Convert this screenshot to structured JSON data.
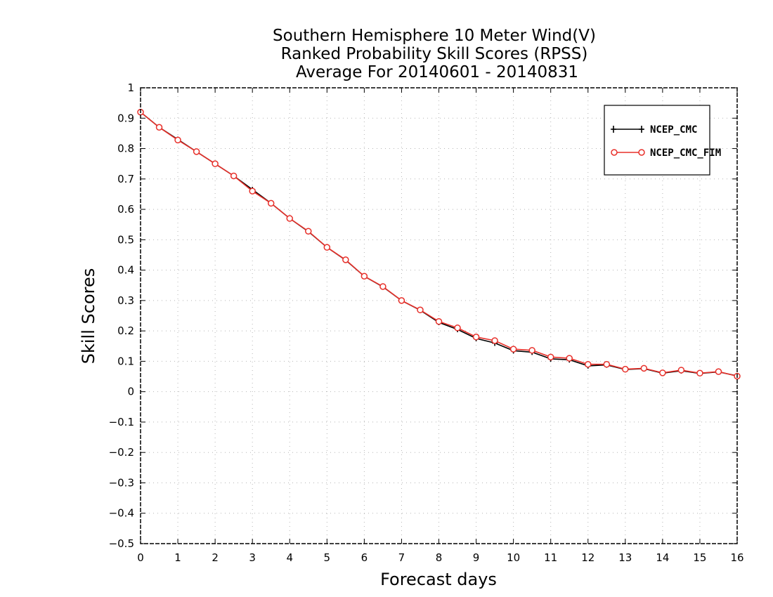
{
  "chart_data": {
    "type": "line",
    "title": [
      "Southern Hemisphere 10 Meter Wind(V)",
      "Ranked Probability Skill Scores (RPSS)",
      "Average For 20140601 - 20140831"
    ],
    "xlabel": "Forecast days",
    "ylabel": "Skill Scores",
    "xlim": [
      0,
      16
    ],
    "ylim": [
      -0.5,
      1
    ],
    "xticks": [
      "0",
      "1",
      "2",
      "3",
      "4",
      "5",
      "6",
      "7",
      "8",
      "9",
      "10",
      "11",
      "12",
      "13",
      "14",
      "15",
      "16"
    ],
    "yticks": [
      "-0.5",
      "-0.4",
      "-0.3",
      "-0.2",
      "-0.1",
      "0",
      "0.1",
      "0.2",
      "0.3",
      "0.4",
      "0.5",
      "0.6",
      "0.7",
      "0.8",
      "0.9",
      "1"
    ],
    "grid": true,
    "legend_position": "top-right",
    "x": [
      0,
      0.5,
      1,
      1.5,
      2,
      2.5,
      3,
      3.5,
      4,
      4.5,
      5,
      5.5,
      6,
      6.5,
      7,
      7.5,
      8,
      8.5,
      9,
      9.5,
      10,
      10.5,
      11,
      11.5,
      12,
      12.5,
      13,
      13.5,
      14,
      14.5,
      15,
      15.5,
      16
    ],
    "series": [
      {
        "name": "NCEP_CMC",
        "color": "#000000",
        "marker": "plus",
        "values": [
          0.92,
          0.87,
          0.83,
          0.79,
          0.75,
          0.71,
          0.665,
          0.62,
          0.57,
          0.527,
          0.475,
          0.433,
          0.38,
          0.345,
          0.3,
          0.268,
          0.228,
          0.205,
          0.175,
          0.16,
          0.135,
          0.13,
          0.108,
          0.105,
          0.085,
          0.088,
          0.073,
          0.076,
          0.061,
          0.069,
          0.06,
          0.065,
          0.052
        ]
      },
      {
        "name": "NCEP_CMC_FIM",
        "color": "#e8302a",
        "marker": "circle",
        "values": [
          0.92,
          0.87,
          0.828,
          0.79,
          0.75,
          0.71,
          0.66,
          0.62,
          0.57,
          0.528,
          0.475,
          0.434,
          0.38,
          0.346,
          0.3,
          0.269,
          0.231,
          0.21,
          0.18,
          0.168,
          0.14,
          0.136,
          0.114,
          0.11,
          0.09,
          0.09,
          0.074,
          0.077,
          0.062,
          0.071,
          0.061,
          0.066,
          0.051
        ]
      }
    ]
  }
}
